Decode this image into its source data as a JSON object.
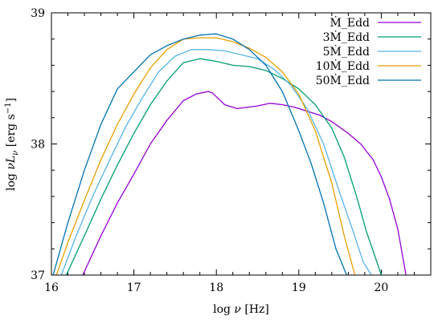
{
  "chart_data": {
    "type": "line",
    "xlabel": "log ν [Hz]",
    "ylabel": "log νL_ν [erg s^-1]",
    "xlim": [
      16,
      20.6
    ],
    "ylim": [
      37,
      39
    ],
    "x_ticks": [
      "16",
      "17",
      "18",
      "19",
      "20"
    ],
    "y_ticks": [
      "37",
      "38",
      "39"
    ],
    "grid": false,
    "legend": "top-right",
    "series": [
      {
        "name": "Ṁ_Edd",
        "color": "#9400d3",
        "x": [
          16.38,
          16.6,
          16.8,
          17.0,
          17.2,
          17.4,
          17.6,
          17.75,
          17.9,
          17.95,
          18.1,
          18.25,
          18.5,
          18.65,
          18.8,
          18.95,
          19.1,
          19.25,
          19.4,
          19.6,
          19.75,
          19.9,
          20.0,
          20.1,
          20.2,
          20.3
        ],
        "y": [
          37.0,
          37.3,
          37.55,
          37.77,
          38.0,
          38.18,
          38.33,
          38.38,
          38.4,
          38.39,
          38.3,
          38.27,
          38.29,
          38.31,
          38.3,
          38.28,
          38.25,
          38.22,
          38.17,
          38.08,
          38.0,
          37.88,
          37.75,
          37.58,
          37.35,
          37.0
        ]
      },
      {
        "name": "3Ṁ_Edd",
        "color": "#009e73",
        "x": [
          16.18,
          16.4,
          16.6,
          16.8,
          17.0,
          17.2,
          17.4,
          17.6,
          17.8,
          18.0,
          18.2,
          18.4,
          18.6,
          18.8,
          19.0,
          19.2,
          19.4,
          19.55,
          19.7,
          19.82,
          19.92,
          20.0
        ],
        "y": [
          37.0,
          37.3,
          37.58,
          37.84,
          38.08,
          38.3,
          38.48,
          38.62,
          38.65,
          38.63,
          38.6,
          38.59,
          38.56,
          38.5,
          38.42,
          38.3,
          38.12,
          37.9,
          37.6,
          37.33,
          37.15,
          37.0
        ]
      },
      {
        "name": "5Ṁ_Edd",
        "color": "#56b4e9",
        "x": [
          16.12,
          16.3,
          16.5,
          16.7,
          16.9,
          17.1,
          17.3,
          17.5,
          17.7,
          17.9,
          18.1,
          18.3,
          18.5,
          18.7,
          18.9,
          19.1,
          19.3,
          19.5,
          19.65,
          19.78,
          19.88
        ],
        "y": [
          37.0,
          37.3,
          37.6,
          37.87,
          38.13,
          38.35,
          38.55,
          38.67,
          38.72,
          38.72,
          38.71,
          38.68,
          38.65,
          38.57,
          38.45,
          38.27,
          38.0,
          37.62,
          37.35,
          37.1,
          37.0
        ]
      },
      {
        "name": "10Ṁ_Edd",
        "color": "#e69f00",
        "x": [
          16.06,
          16.2,
          16.4,
          16.6,
          16.8,
          17.0,
          17.2,
          17.4,
          17.6,
          17.8,
          18.0,
          18.2,
          18.4,
          18.6,
          18.8,
          19.0,
          19.2,
          19.4,
          19.55,
          19.68
        ],
        "y": [
          37.0,
          37.25,
          37.57,
          37.88,
          38.15,
          38.38,
          38.58,
          38.72,
          38.8,
          38.81,
          38.81,
          38.78,
          38.73,
          38.66,
          38.55,
          38.38,
          38.1,
          37.7,
          37.3,
          37.0
        ]
      },
      {
        "name": "50Ṁ_Edd",
        "color": "#0072b2",
        "x": [
          16.02,
          16.2,
          16.4,
          16.6,
          16.8,
          17.0,
          17.2,
          17.4,
          17.6,
          17.8,
          18.0,
          18.2,
          18.4,
          18.6,
          18.8,
          19.0,
          19.15,
          19.3,
          19.45,
          19.58
        ],
        "y": [
          37.0,
          37.4,
          37.8,
          38.15,
          38.42,
          38.55,
          38.68,
          38.75,
          38.8,
          38.83,
          38.84,
          38.8,
          38.72,
          38.6,
          38.4,
          38.1,
          37.85,
          37.55,
          37.2,
          37.0
        ]
      }
    ]
  }
}
